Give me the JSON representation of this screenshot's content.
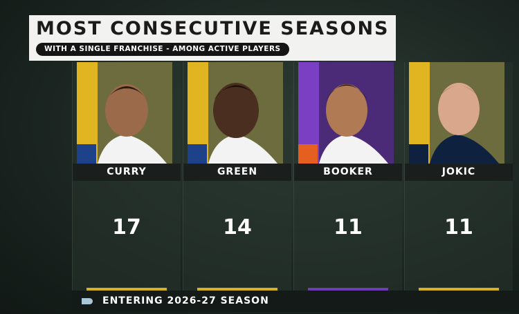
{
  "header": {
    "title": "MOST CONSECUTIVE SEASONS",
    "subtitle": "WITH A SINGLE FRANCHISE - AMONG ACTIVE PLAYERS"
  },
  "players": [
    {
      "name": "CURRY",
      "seasons": 17
    },
    {
      "name": "GREEN",
      "seasons": 14
    },
    {
      "name": "BOOKER",
      "seasons": 11
    },
    {
      "name": "JOKIC",
      "seasons": 11
    }
  ],
  "footer": {
    "text": "ENTERING 2026-27 SEASON"
  }
}
